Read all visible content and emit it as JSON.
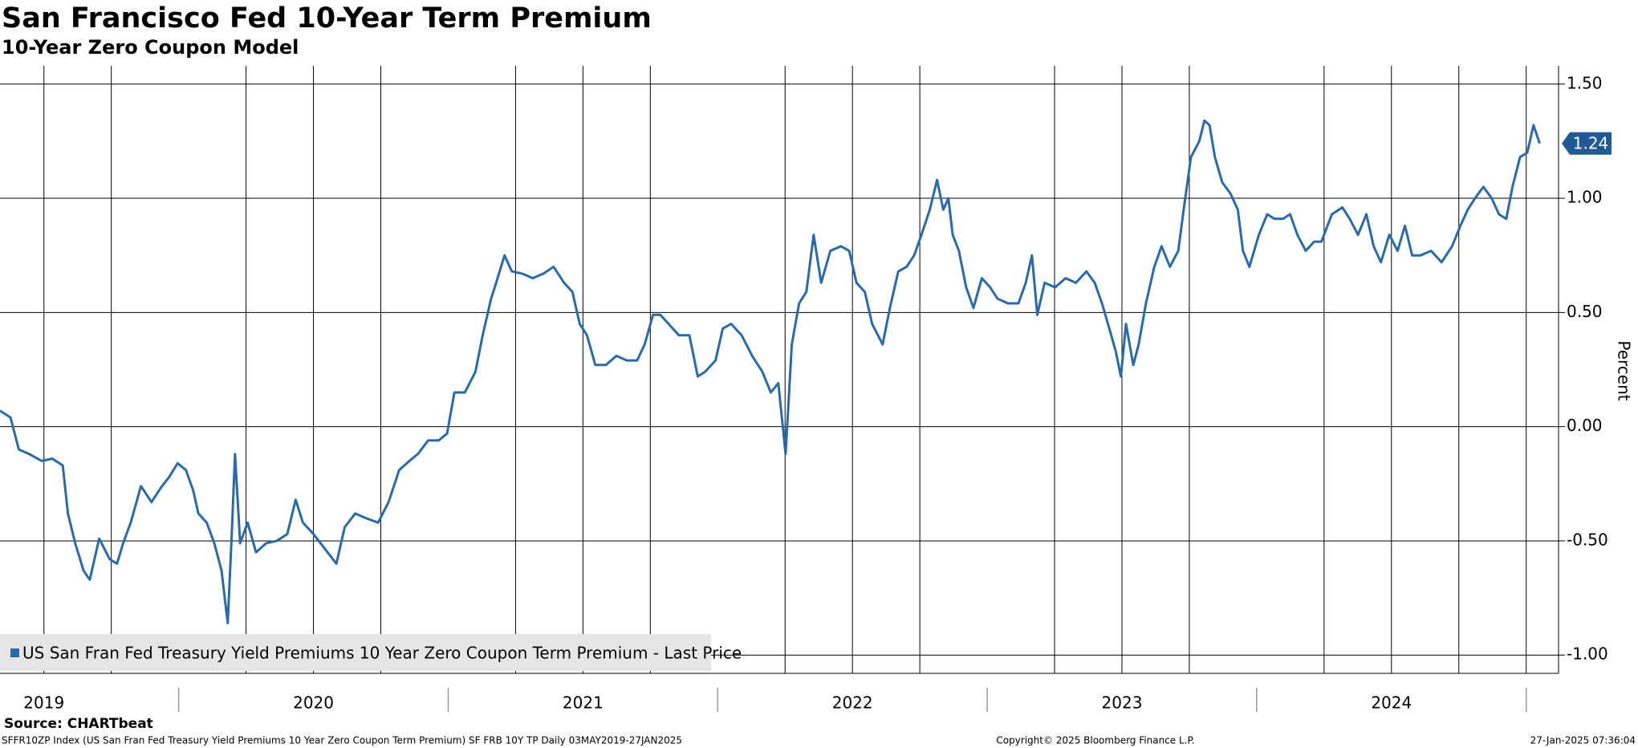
{
  "chart_data": {
    "type": "line",
    "title": "San Francisco Fed 10-Year Term Premium",
    "subtitle": "10-Year Zero Coupon Model",
    "y_axis_label": "Percent",
    "source": "Source: CHARTbeat",
    "footer_left": "SFFR10ZP Index (US San Fran Fed Treasury Yield Premiums 10 Year Zero Coupon Term Premium) SF FRB 10Y TP  Daily 03MAY2019-27JAN2025",
    "footer_center": "Copyright© 2025 Bloomberg Finance L.P.",
    "footer_right": "27-Jan-2025 07:36:04",
    "legend": "US San Fran Fed Treasury Yield Premiums 10 Year Zero Coupon Term Premium - Last Price",
    "last_price_label": {
      "value": 1.24,
      "label": "1.24"
    },
    "xlim": [
      2019.337,
      2025.12
    ],
    "ylim": [
      -1.08,
      1.58
    ],
    "xticks": [
      {
        "value": 2019.5,
        "label": "2019"
      },
      {
        "value": 2020.5,
        "label": "2020"
      },
      {
        "value": 2021.5,
        "label": "2021"
      },
      {
        "value": 2022.5,
        "label": "2022"
      },
      {
        "value": 2023.5,
        "label": "2023"
      },
      {
        "value": 2024.5,
        "label": "2024"
      }
    ],
    "xgrid": [
      2019.5,
      2019.75,
      2020.25,
      2020.5,
      2020.75,
      2021.25,
      2021.5,
      2021.75,
      2022.25,
      2022.5,
      2022.75,
      2023.25,
      2023.5,
      2023.75,
      2024.25,
      2024.5,
      2024.75,
      2025
    ],
    "xseparators": [
      2020,
      2021,
      2022,
      2023,
      2024,
      2025
    ],
    "yticks": [
      {
        "value": 1.5,
        "label": "1.50"
      },
      {
        "value": 1.0,
        "label": "1.00"
      },
      {
        "value": 0.5,
        "label": "0.50"
      },
      {
        "value": 0,
        "label": "0.00"
      },
      {
        "value": -0.5,
        "label": "-0.50"
      },
      {
        "value": -1.0,
        "label": "-1.00"
      }
    ],
    "grid": true,
    "x": [
      2019.337,
      2019.376,
      2019.407,
      2019.446,
      2019.492,
      2019.531,
      2019.57,
      2019.589,
      2019.616,
      2019.647,
      2019.67,
      2019.705,
      2019.744,
      2019.771,
      2019.794,
      2019.822,
      2019.86,
      2019.899,
      2019.938,
      2019.965,
      2019.996,
      2020.027,
      2020.054,
      2020.073,
      2020.104,
      2020.132,
      2020.159,
      2020.182,
      2020.197,
      2020.209,
      2020.228,
      2020.256,
      2020.287,
      2020.325,
      2020.364,
      2020.403,
      2020.434,
      2020.461,
      2020.5,
      2020.546,
      2020.585,
      2020.616,
      2020.655,
      2020.694,
      2020.74,
      2020.779,
      2020.818,
      2020.856,
      2020.887,
      2020.926,
      2020.965,
      2020.996,
      2021.023,
      2021.062,
      2021.101,
      2021.128,
      2021.159,
      2021.178,
      2021.209,
      2021.236,
      2021.275,
      2021.314,
      2021.353,
      2021.391,
      2021.43,
      2021.461,
      2021.488,
      2021.515,
      2021.546,
      2021.585,
      2021.624,
      2021.663,
      2021.701,
      2021.729,
      2021.76,
      2021.787,
      2021.818,
      2021.856,
      2021.895,
      2021.926,
      2021.953,
      2021.992,
      2022.019,
      2022.05,
      2022.089,
      2022.128,
      2022.166,
      2022.197,
      2022.225,
      2022.252,
      2022.275,
      2022.302,
      2022.329,
      2022.356,
      2022.384,
      2022.418,
      2022.457,
      2022.488,
      2022.515,
      2022.546,
      2022.573,
      2022.612,
      2022.639,
      2022.67,
      2022.701,
      2022.729,
      2022.756,
      2022.787,
      2022.814,
      2022.837,
      2022.856,
      2022.872,
      2022.895,
      2022.922,
      2022.949,
      2022.98,
      2023.011,
      2023.039,
      2023.077,
      2023.116,
      2023.143,
      2023.166,
      2023.186,
      2023.213,
      2023.252,
      2023.291,
      2023.329,
      2023.368,
      2023.399,
      2023.426,
      2023.453,
      2023.477,
      2023.496,
      2023.515,
      2023.542,
      2023.562,
      2023.589,
      2023.62,
      2023.647,
      2023.678,
      2023.709,
      2023.729,
      2023.756,
      2023.787,
      2023.806,
      2023.825,
      2023.845,
      2023.872,
      2023.903,
      2023.93,
      2023.949,
      2023.973,
      2024.008,
      2024.039,
      2024.066,
      2024.097,
      2024.124,
      2024.151,
      2024.182,
      2024.213,
      2024.24,
      2024.279,
      2024.318,
      2024.345,
      2024.376,
      2024.407,
      2024.434,
      2024.461,
      2024.492,
      2024.523,
      2024.55,
      2024.577,
      2024.608,
      2024.647,
      2024.686,
      2024.725,
      2024.756,
      2024.783,
      2024.81,
      2024.841,
      2024.872,
      2024.899,
      2024.926,
      2024.949,
      2024.977,
      2025.004,
      2025.027,
      2025.05
    ],
    "series": [
      {
        "name": "US San Fran Fed Treasury Yield Premiums 10 Year Zero Coupon Term Premium - Last Price",
        "color": "#2b6aa8",
        "values": [
          0.07,
          0.04,
          -0.1,
          -0.12,
          -0.15,
          -0.14,
          -0.17,
          -0.38,
          -0.51,
          -0.63,
          -0.67,
          -0.49,
          -0.58,
          -0.6,
          -0.51,
          -0.42,
          -0.26,
          -0.33,
          -0.26,
          -0.22,
          -0.16,
          -0.19,
          -0.28,
          -0.38,
          -0.42,
          -0.51,
          -0.63,
          -0.86,
          -0.47,
          -0.12,
          -0.51,
          -0.42,
          -0.55,
          -0.51,
          -0.5,
          -0.47,
          -0.32,
          -0.42,
          -0.47,
          -0.54,
          -0.6,
          -0.44,
          -0.38,
          -0.4,
          -0.42,
          -0.33,
          -0.19,
          -0.15,
          -0.12,
          -0.06,
          -0.06,
          -0.03,
          0.15,
          0.15,
          0.24,
          0.4,
          0.56,
          0.63,
          0.75,
          0.68,
          0.67,
          0.65,
          0.67,
          0.7,
          0.63,
          0.59,
          0.45,
          0.4,
          0.27,
          0.27,
          0.31,
          0.29,
          0.29,
          0.36,
          0.49,
          0.49,
          0.45,
          0.4,
          0.4,
          0.22,
          0.24,
          0.29,
          0.43,
          0.45,
          0.4,
          0.31,
          0.24,
          0.15,
          0.19,
          -0.12,
          0.36,
          0.54,
          0.59,
          0.84,
          0.63,
          0.77,
          0.79,
          0.77,
          0.63,
          0.59,
          0.45,
          0.36,
          0.52,
          0.68,
          0.7,
          0.75,
          0.84,
          0.95,
          1.08,
          0.95,
          1.0,
          0.84,
          0.77,
          0.61,
          0.52,
          0.65,
          0.61,
          0.56,
          0.54,
          0.54,
          0.63,
          0.75,
          0.49,
          0.63,
          0.61,
          0.65,
          0.63,
          0.68,
          0.63,
          0.54,
          0.43,
          0.33,
          0.22,
          0.45,
          0.27,
          0.36,
          0.54,
          0.7,
          0.79,
          0.7,
          0.77,
          0.95,
          1.18,
          1.25,
          1.34,
          1.32,
          1.18,
          1.07,
          1.02,
          0.95,
          0.77,
          0.7,
          0.84,
          0.93,
          0.91,
          0.91,
          0.93,
          0.84,
          0.77,
          0.81,
          0.81,
          0.93,
          0.96,
          0.91,
          0.84,
          0.93,
          0.79,
          0.72,
          0.84,
          0.77,
          0.88,
          0.75,
          0.75,
          0.77,
          0.72,
          0.79,
          0.88,
          0.95,
          1.0,
          1.05,
          1.0,
          0.93,
          0.91,
          1.05,
          1.18,
          1.2,
          1.32,
          1.24
        ]
      }
    ]
  }
}
